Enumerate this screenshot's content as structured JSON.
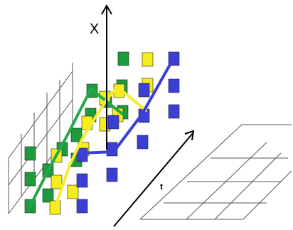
{
  "axes": {
    "vertical_label": "X",
    "depth_label": "t"
  },
  "colors": {
    "green": "#1d9b3d",
    "yellow": "#f5ee1c",
    "blue": "#3c3fd4",
    "green_line": "#23a84a",
    "yellow_line": "#f5ec2a",
    "blue_line": "#3a3fd6",
    "grid": "#555555",
    "axis": "#000000"
  },
  "grid": {
    "rows": 3,
    "columns": 3,
    "layers": 3
  }
}
